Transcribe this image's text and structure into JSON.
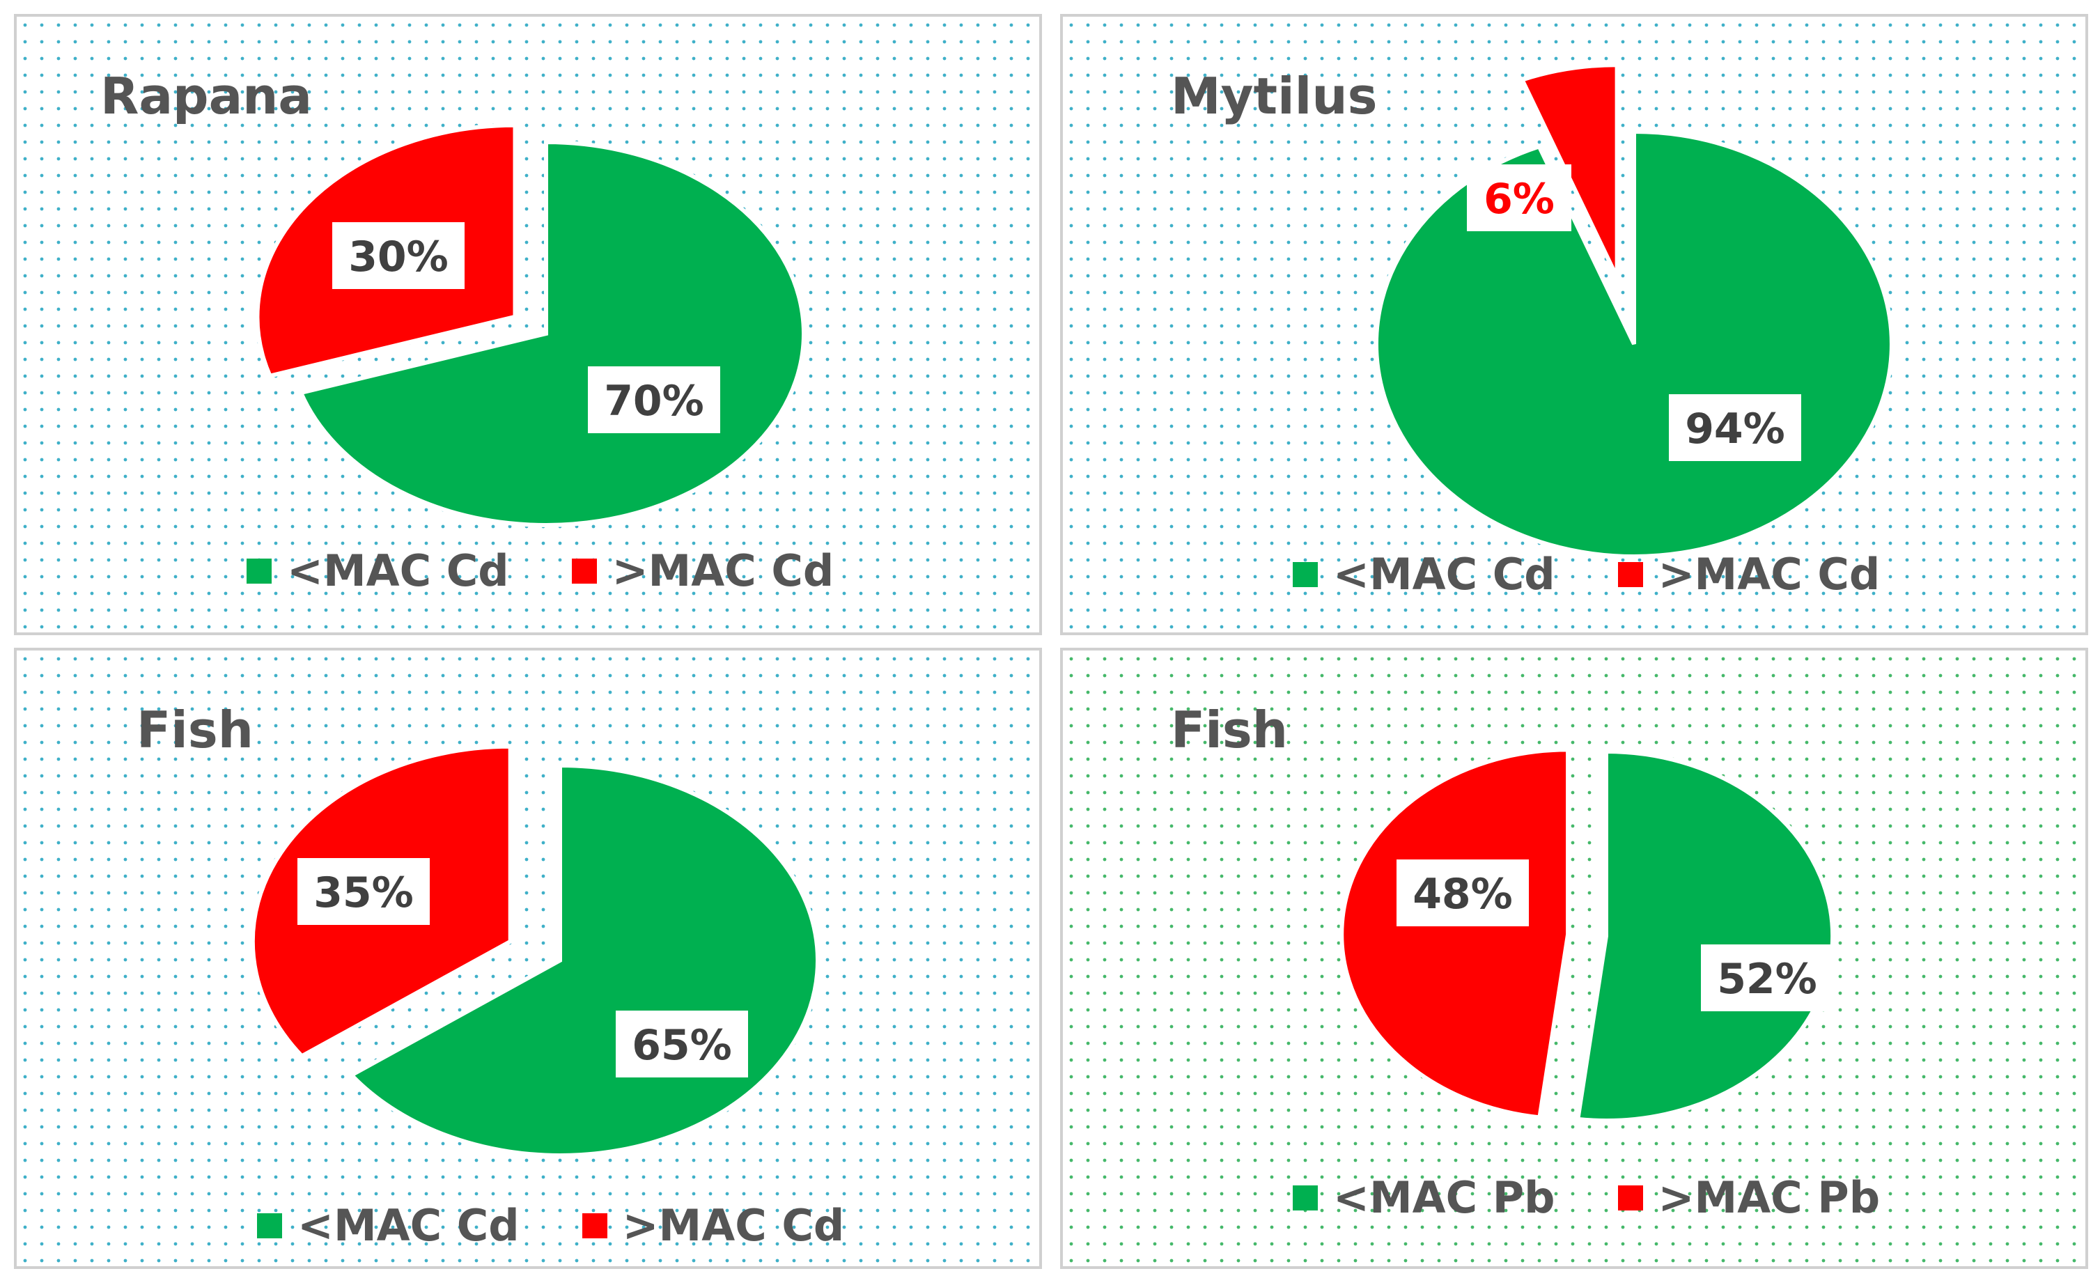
{
  "colors": {
    "below": "#00b050",
    "above": "#ff0000",
    "label_text": "#404040",
    "title_text": "#555555"
  },
  "chart_data": [
    {
      "type": "pie",
      "title": "Rapana",
      "series": [
        {
          "name": "<MAC Cd",
          "value": 70,
          "label": "70%"
        },
        {
          "name": ">MAC Cd",
          "value": 30,
          "label": "30%"
        }
      ],
      "legend": "bottom"
    },
    {
      "type": "pie",
      "title": "Mytilus",
      "series": [
        {
          "name": "<MAC Cd",
          "value": 94,
          "label": "94%"
        },
        {
          "name": ">MAC Cd",
          "value": 6,
          "label": "6%"
        }
      ],
      "legend": "bottom"
    },
    {
      "type": "pie",
      "title": "Fish",
      "series": [
        {
          "name": "<MAC Cd",
          "value": 65,
          "label": "65%"
        },
        {
          "name": ">MAC Cd",
          "value": 35,
          "label": "35%"
        }
      ],
      "legend": "bottom"
    },
    {
      "type": "pie",
      "title": "Fish",
      "series": [
        {
          "name": "<MAC Pb",
          "value": 52,
          "label": "52%"
        },
        {
          "name": ">MAC Pb",
          "value": 48,
          "label": "48%"
        }
      ],
      "legend": "bottom"
    }
  ]
}
